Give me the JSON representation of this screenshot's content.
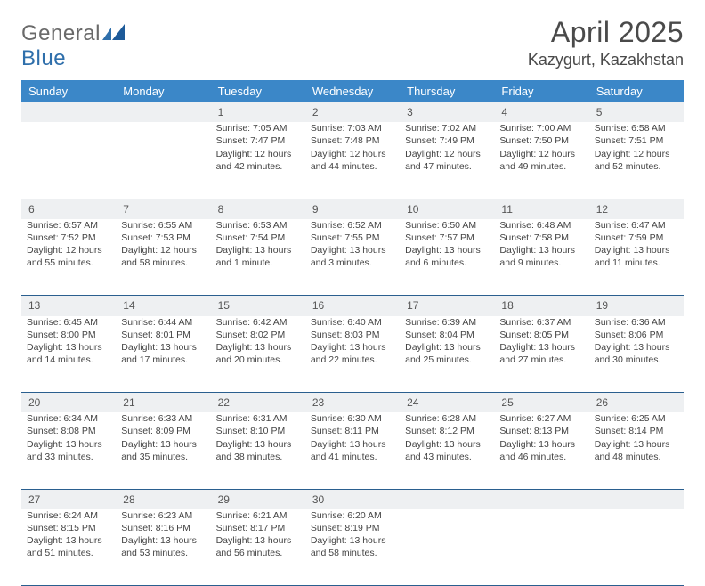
{
  "logo": {
    "text_general": "Genera",
    "text_l": "l",
    "text_blue": "Blue"
  },
  "header": {
    "month_title": "April 2025",
    "location": "Kazygurt, Kazakhstan"
  },
  "colors": {
    "header_bg": "#3b87c8",
    "header_text": "#ffffff",
    "daynum_bg": "#eef0f2",
    "rule": "#2a5f8f",
    "body_text": "#444444",
    "logo_gray": "#6a6a6a",
    "logo_blue": "#2f6fab"
  },
  "typography": {
    "month_title_fontsize": 32,
    "location_fontsize": 18,
    "th_fontsize": 13,
    "cell_fontsize": 10.5,
    "daynum_fontsize": 12
  },
  "weekdays": [
    "Sunday",
    "Monday",
    "Tuesday",
    "Wednesday",
    "Thursday",
    "Friday",
    "Saturday"
  ],
  "weeks": [
    [
      null,
      null,
      {
        "n": "1",
        "sr": "Sunrise: 7:05 AM",
        "ss": "Sunset: 7:47 PM",
        "d1": "Daylight: 12 hours",
        "d2": "and 42 minutes."
      },
      {
        "n": "2",
        "sr": "Sunrise: 7:03 AM",
        "ss": "Sunset: 7:48 PM",
        "d1": "Daylight: 12 hours",
        "d2": "and 44 minutes."
      },
      {
        "n": "3",
        "sr": "Sunrise: 7:02 AM",
        "ss": "Sunset: 7:49 PM",
        "d1": "Daylight: 12 hours",
        "d2": "and 47 minutes."
      },
      {
        "n": "4",
        "sr": "Sunrise: 7:00 AM",
        "ss": "Sunset: 7:50 PM",
        "d1": "Daylight: 12 hours",
        "d2": "and 49 minutes."
      },
      {
        "n": "5",
        "sr": "Sunrise: 6:58 AM",
        "ss": "Sunset: 7:51 PM",
        "d1": "Daylight: 12 hours",
        "d2": "and 52 minutes."
      }
    ],
    [
      {
        "n": "6",
        "sr": "Sunrise: 6:57 AM",
        "ss": "Sunset: 7:52 PM",
        "d1": "Daylight: 12 hours",
        "d2": "and 55 minutes."
      },
      {
        "n": "7",
        "sr": "Sunrise: 6:55 AM",
        "ss": "Sunset: 7:53 PM",
        "d1": "Daylight: 12 hours",
        "d2": "and 58 minutes."
      },
      {
        "n": "8",
        "sr": "Sunrise: 6:53 AM",
        "ss": "Sunset: 7:54 PM",
        "d1": "Daylight: 13 hours",
        "d2": "and 1 minute."
      },
      {
        "n": "9",
        "sr": "Sunrise: 6:52 AM",
        "ss": "Sunset: 7:55 PM",
        "d1": "Daylight: 13 hours",
        "d2": "and 3 minutes."
      },
      {
        "n": "10",
        "sr": "Sunrise: 6:50 AM",
        "ss": "Sunset: 7:57 PM",
        "d1": "Daylight: 13 hours",
        "d2": "and 6 minutes."
      },
      {
        "n": "11",
        "sr": "Sunrise: 6:48 AM",
        "ss": "Sunset: 7:58 PM",
        "d1": "Daylight: 13 hours",
        "d2": "and 9 minutes."
      },
      {
        "n": "12",
        "sr": "Sunrise: 6:47 AM",
        "ss": "Sunset: 7:59 PM",
        "d1": "Daylight: 13 hours",
        "d2": "and 11 minutes."
      }
    ],
    [
      {
        "n": "13",
        "sr": "Sunrise: 6:45 AM",
        "ss": "Sunset: 8:00 PM",
        "d1": "Daylight: 13 hours",
        "d2": "and 14 minutes."
      },
      {
        "n": "14",
        "sr": "Sunrise: 6:44 AM",
        "ss": "Sunset: 8:01 PM",
        "d1": "Daylight: 13 hours",
        "d2": "and 17 minutes."
      },
      {
        "n": "15",
        "sr": "Sunrise: 6:42 AM",
        "ss": "Sunset: 8:02 PM",
        "d1": "Daylight: 13 hours",
        "d2": "and 20 minutes."
      },
      {
        "n": "16",
        "sr": "Sunrise: 6:40 AM",
        "ss": "Sunset: 8:03 PM",
        "d1": "Daylight: 13 hours",
        "d2": "and 22 minutes."
      },
      {
        "n": "17",
        "sr": "Sunrise: 6:39 AM",
        "ss": "Sunset: 8:04 PM",
        "d1": "Daylight: 13 hours",
        "d2": "and 25 minutes."
      },
      {
        "n": "18",
        "sr": "Sunrise: 6:37 AM",
        "ss": "Sunset: 8:05 PM",
        "d1": "Daylight: 13 hours",
        "d2": "and 27 minutes."
      },
      {
        "n": "19",
        "sr": "Sunrise: 6:36 AM",
        "ss": "Sunset: 8:06 PM",
        "d1": "Daylight: 13 hours",
        "d2": "and 30 minutes."
      }
    ],
    [
      {
        "n": "20",
        "sr": "Sunrise: 6:34 AM",
        "ss": "Sunset: 8:08 PM",
        "d1": "Daylight: 13 hours",
        "d2": "and 33 minutes."
      },
      {
        "n": "21",
        "sr": "Sunrise: 6:33 AM",
        "ss": "Sunset: 8:09 PM",
        "d1": "Daylight: 13 hours",
        "d2": "and 35 minutes."
      },
      {
        "n": "22",
        "sr": "Sunrise: 6:31 AM",
        "ss": "Sunset: 8:10 PM",
        "d1": "Daylight: 13 hours",
        "d2": "and 38 minutes."
      },
      {
        "n": "23",
        "sr": "Sunrise: 6:30 AM",
        "ss": "Sunset: 8:11 PM",
        "d1": "Daylight: 13 hours",
        "d2": "and 41 minutes."
      },
      {
        "n": "24",
        "sr": "Sunrise: 6:28 AM",
        "ss": "Sunset: 8:12 PM",
        "d1": "Daylight: 13 hours",
        "d2": "and 43 minutes."
      },
      {
        "n": "25",
        "sr": "Sunrise: 6:27 AM",
        "ss": "Sunset: 8:13 PM",
        "d1": "Daylight: 13 hours",
        "d2": "and 46 minutes."
      },
      {
        "n": "26",
        "sr": "Sunrise: 6:25 AM",
        "ss": "Sunset: 8:14 PM",
        "d1": "Daylight: 13 hours",
        "d2": "and 48 minutes."
      }
    ],
    [
      {
        "n": "27",
        "sr": "Sunrise: 6:24 AM",
        "ss": "Sunset: 8:15 PM",
        "d1": "Daylight: 13 hours",
        "d2": "and 51 minutes."
      },
      {
        "n": "28",
        "sr": "Sunrise: 6:23 AM",
        "ss": "Sunset: 8:16 PM",
        "d1": "Daylight: 13 hours",
        "d2": "and 53 minutes."
      },
      {
        "n": "29",
        "sr": "Sunrise: 6:21 AM",
        "ss": "Sunset: 8:17 PM",
        "d1": "Daylight: 13 hours",
        "d2": "and 56 minutes."
      },
      {
        "n": "30",
        "sr": "Sunrise: 6:20 AM",
        "ss": "Sunset: 8:19 PM",
        "d1": "Daylight: 13 hours",
        "d2": "and 58 minutes."
      },
      null,
      null,
      null
    ]
  ]
}
